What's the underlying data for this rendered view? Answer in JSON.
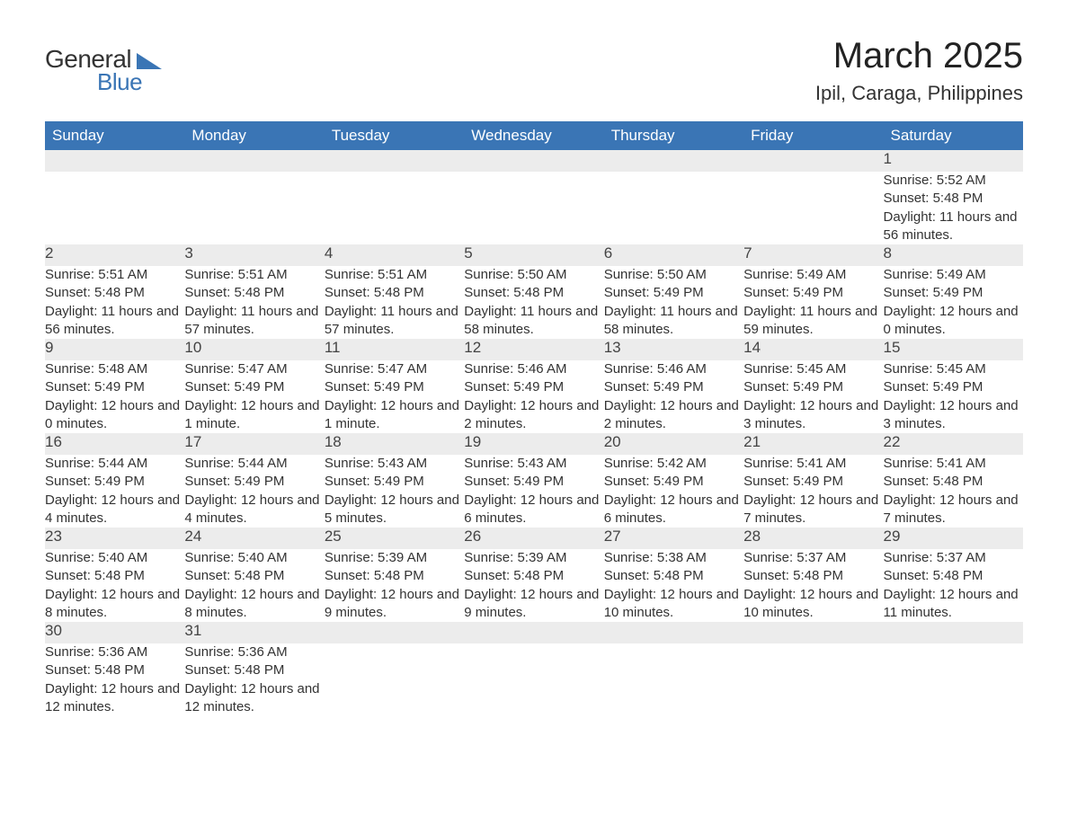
{
  "logo": {
    "line1": "General",
    "line2": "Blue"
  },
  "title": "March 2025",
  "subtitle": "Ipil, Caraga, Philippines",
  "colors": {
    "header_bg": "#3a75b5",
    "header_text": "#ffffff",
    "daynum_bg": "#ececec",
    "row_divider": "#3a75b5",
    "body_text": "#333333",
    "page_bg": "#ffffff"
  },
  "typography": {
    "title_fontsize": 40,
    "subtitle_fontsize": 22,
    "header_fontsize": 17,
    "daynum_fontsize": 17,
    "cell_fontsize": 15,
    "font_family": "Arial"
  },
  "layout": {
    "columns": 7,
    "weeks": 6,
    "first_day_column_index": 6
  },
  "weekdays": [
    "Sunday",
    "Monday",
    "Tuesday",
    "Wednesday",
    "Thursday",
    "Friday",
    "Saturday"
  ],
  "days": {
    "1": {
      "sunrise": "5:52 AM",
      "sunset": "5:48 PM",
      "daylight": "11 hours and 56 minutes."
    },
    "2": {
      "sunrise": "5:51 AM",
      "sunset": "5:48 PM",
      "daylight": "11 hours and 56 minutes."
    },
    "3": {
      "sunrise": "5:51 AM",
      "sunset": "5:48 PM",
      "daylight": "11 hours and 57 minutes."
    },
    "4": {
      "sunrise": "5:51 AM",
      "sunset": "5:48 PM",
      "daylight": "11 hours and 57 minutes."
    },
    "5": {
      "sunrise": "5:50 AM",
      "sunset": "5:48 PM",
      "daylight": "11 hours and 58 minutes."
    },
    "6": {
      "sunrise": "5:50 AM",
      "sunset": "5:49 PM",
      "daylight": "11 hours and 58 minutes."
    },
    "7": {
      "sunrise": "5:49 AM",
      "sunset": "5:49 PM",
      "daylight": "11 hours and 59 minutes."
    },
    "8": {
      "sunrise": "5:49 AM",
      "sunset": "5:49 PM",
      "daylight": "12 hours and 0 minutes."
    },
    "9": {
      "sunrise": "5:48 AM",
      "sunset": "5:49 PM",
      "daylight": "12 hours and 0 minutes."
    },
    "10": {
      "sunrise": "5:47 AM",
      "sunset": "5:49 PM",
      "daylight": "12 hours and 1 minute."
    },
    "11": {
      "sunrise": "5:47 AM",
      "sunset": "5:49 PM",
      "daylight": "12 hours and 1 minute."
    },
    "12": {
      "sunrise": "5:46 AM",
      "sunset": "5:49 PM",
      "daylight": "12 hours and 2 minutes."
    },
    "13": {
      "sunrise": "5:46 AM",
      "sunset": "5:49 PM",
      "daylight": "12 hours and 2 minutes."
    },
    "14": {
      "sunrise": "5:45 AM",
      "sunset": "5:49 PM",
      "daylight": "12 hours and 3 minutes."
    },
    "15": {
      "sunrise": "5:45 AM",
      "sunset": "5:49 PM",
      "daylight": "12 hours and 3 minutes."
    },
    "16": {
      "sunrise": "5:44 AM",
      "sunset": "5:49 PM",
      "daylight": "12 hours and 4 minutes."
    },
    "17": {
      "sunrise": "5:44 AM",
      "sunset": "5:49 PM",
      "daylight": "12 hours and 4 minutes."
    },
    "18": {
      "sunrise": "5:43 AM",
      "sunset": "5:49 PM",
      "daylight": "12 hours and 5 minutes."
    },
    "19": {
      "sunrise": "5:43 AM",
      "sunset": "5:49 PM",
      "daylight": "12 hours and 6 minutes."
    },
    "20": {
      "sunrise": "5:42 AM",
      "sunset": "5:49 PM",
      "daylight": "12 hours and 6 minutes."
    },
    "21": {
      "sunrise": "5:41 AM",
      "sunset": "5:49 PM",
      "daylight": "12 hours and 7 minutes."
    },
    "22": {
      "sunrise": "5:41 AM",
      "sunset": "5:48 PM",
      "daylight": "12 hours and 7 minutes."
    },
    "23": {
      "sunrise": "5:40 AM",
      "sunset": "5:48 PM",
      "daylight": "12 hours and 8 minutes."
    },
    "24": {
      "sunrise": "5:40 AM",
      "sunset": "5:48 PM",
      "daylight": "12 hours and 8 minutes."
    },
    "25": {
      "sunrise": "5:39 AM",
      "sunset": "5:48 PM",
      "daylight": "12 hours and 9 minutes."
    },
    "26": {
      "sunrise": "5:39 AM",
      "sunset": "5:48 PM",
      "daylight": "12 hours and 9 minutes."
    },
    "27": {
      "sunrise": "5:38 AM",
      "sunset": "5:48 PM",
      "daylight": "12 hours and 10 minutes."
    },
    "28": {
      "sunrise": "5:37 AM",
      "sunset": "5:48 PM",
      "daylight": "12 hours and 10 minutes."
    },
    "29": {
      "sunrise": "5:37 AM",
      "sunset": "5:48 PM",
      "daylight": "12 hours and 11 minutes."
    },
    "30": {
      "sunrise": "5:36 AM",
      "sunset": "5:48 PM",
      "daylight": "12 hours and 12 minutes."
    },
    "31": {
      "sunrise": "5:36 AM",
      "sunset": "5:48 PM",
      "daylight": "12 hours and 12 minutes."
    }
  },
  "labels": {
    "sunrise": "Sunrise: ",
    "sunset": "Sunset: ",
    "daylight": "Daylight: "
  },
  "grid": [
    [
      null,
      null,
      null,
      null,
      null,
      null,
      "1"
    ],
    [
      "2",
      "3",
      "4",
      "5",
      "6",
      "7",
      "8"
    ],
    [
      "9",
      "10",
      "11",
      "12",
      "13",
      "14",
      "15"
    ],
    [
      "16",
      "17",
      "18",
      "19",
      "20",
      "21",
      "22"
    ],
    [
      "23",
      "24",
      "25",
      "26",
      "27",
      "28",
      "29"
    ],
    [
      "30",
      "31",
      null,
      null,
      null,
      null,
      null
    ]
  ]
}
